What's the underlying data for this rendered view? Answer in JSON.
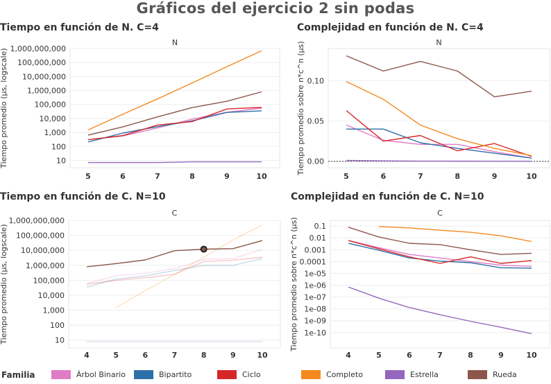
{
  "page": {
    "title": "Gráficos del ejercicio 2 sin podas"
  },
  "legend": {
    "title": "Familia",
    "items": [
      {
        "label": "Árbol Binario",
        "color": "#e07bc6"
      },
      {
        "label": "Bipartito",
        "color": "#2d6fa8"
      },
      {
        "label": "Ciclo",
        "color": "#d62728"
      },
      {
        "label": "Completo",
        "color": "#f5891f"
      },
      {
        "label": "Estrella",
        "color": "#9467bd"
      },
      {
        "label": "Rueda",
        "color": "#8c564b"
      }
    ]
  },
  "chart_data": [
    {
      "id": "time-n",
      "type": "line",
      "title": "Tiempo en función de N. C=4",
      "header": "N",
      "ylabel": "Tiempo promedio (μs, logscale)",
      "yscale": "log",
      "x": [
        5,
        6,
        7,
        8,
        9,
        10
      ],
      "xticks": [
        "5",
        "6",
        "7",
        "8",
        "9",
        "10"
      ],
      "ylim": [
        3,
        1000000000
      ],
      "yticks": [
        10,
        100,
        1000,
        10000,
        100000,
        1000000,
        10000000,
        100000000,
        1000000000
      ],
      "ytick_labels": [
        "10",
        "100",
        "1,000",
        "10,000",
        "100,000",
        "1,000,000",
        "10,000,000",
        "100,000,000",
        "1,000,000,000"
      ],
      "series": [
        {
          "name": "Árbol Binario",
          "values": [
            300,
            560,
            2100,
            9000,
            28000,
            55000
          ]
        },
        {
          "name": "Bipartito",
          "values": [
            210,
            900,
            2600,
            6800,
            27000,
            35000
          ]
        },
        {
          "name": "Ciclo",
          "values": [
            300,
            600,
            3400,
            6000,
            48000,
            62000
          ]
        },
        {
          "name": "Completo",
          "values": [
            1500,
            20000,
            250000,
            3500000,
            50000000,
            700000000
          ]
        },
        {
          "name": "Estrella",
          "values": [
            7,
            7,
            7,
            8,
            8,
            8
          ]
        },
        {
          "name": "Rueda",
          "values": [
            650,
            2500,
            13000,
            60000,
            170000,
            800000
          ]
        }
      ]
    },
    {
      "id": "complex-n",
      "type": "line",
      "title": "Complejidad en función de N. C=4",
      "header": "N",
      "ylabel": "Tiempo promedio sobre n*c^n (μs)",
      "yscale": "linear",
      "x": [
        5,
        6,
        7,
        8,
        9,
        10
      ],
      "xticks": [
        "5",
        "6",
        "7",
        "8",
        "9",
        "10"
      ],
      "ylim": [
        -0.008,
        0.14
      ],
      "yticks": [
        0.0,
        0.05,
        0.1
      ],
      "ytick_labels": [
        "0.00",
        "0.05",
        "0.10"
      ],
      "reference_line": 0,
      "series": [
        {
          "name": "Árbol Binario",
          "values": [
            0.045,
            0.026,
            0.021,
            0.021,
            0.012,
            0.004
          ]
        },
        {
          "name": "Bipartito",
          "values": [
            0.04,
            0.04,
            0.023,
            0.016,
            0.01,
            0.004
          ]
        },
        {
          "name": "Ciclo",
          "values": [
            0.063,
            0.025,
            0.032,
            0.013,
            0.022,
            0.006
          ]
        },
        {
          "name": "Completo",
          "values": [
            0.099,
            0.077,
            0.045,
            0.028,
            0.016,
            0.007
          ]
        },
        {
          "name": "Estrella",
          "values": [
            0.001,
            0.0005,
            0.0003,
            0.0002,
            0.0001,
            0.0001
          ]
        },
        {
          "name": "Rueda",
          "values": [
            0.131,
            0.112,
            0.124,
            0.112,
            0.08,
            0.087
          ]
        }
      ]
    },
    {
      "id": "time-c",
      "type": "line",
      "title": "Tiempo en función de C. N=10",
      "header": "C",
      "ylabel": "Tiempo promedio (μs, logscale)",
      "yscale": "log",
      "x": [
        4,
        5,
        6,
        7,
        8,
        9,
        10
      ],
      "xticks": [
        "4",
        "5",
        "6",
        "7",
        "8",
        "9",
        "10"
      ],
      "ylim": [
        3,
        1000000000
      ],
      "yticks": [
        10,
        100,
        1000,
        10000,
        100000,
        1000000,
        10000000,
        100000000,
        1000000000
      ],
      "ytick_labels": [
        "10",
        "100",
        "1,000",
        "10,000",
        "100,000",
        "1,000,000",
        "10,000,000",
        "100,000,000",
        "1,000,000,000"
      ],
      "highlight": {
        "series": "Rueda",
        "x": 8,
        "y": 12000000
      },
      "series": [
        {
          "name": "Árbol Binario",
          "values": [
            60000,
            200000,
            300000,
            600000,
            2500000,
            2800000,
            12000000
          ]
        },
        {
          "name": "Bipartito",
          "values": [
            35000,
            120000,
            200000,
            450000,
            1000000,
            1000000,
            2800000
          ]
        },
        {
          "name": "Ciclo",
          "values": [
            55000,
            100000,
            150000,
            250000,
            1800000,
            2200000,
            3500000
          ]
        },
        {
          "name": "Completo",
          "values": [
            null,
            1500,
            20000,
            250000,
            3500000,
            50000000,
            500000000
          ]
        },
        {
          "name": "Estrella",
          "values": [
            8,
            8,
            8,
            8,
            8,
            8,
            8
          ]
        },
        {
          "name": "Rueda",
          "values": [
            800000,
            1300000,
            2300000,
            9500000,
            12000000,
            13000000,
            45000000
          ]
        }
      ]
    },
    {
      "id": "complex-c",
      "type": "line",
      "title": "Complejidad en función de C. N=10",
      "header": "C",
      "ylabel": "Tiempo promedio sobre n*c^n (μs)",
      "yscale": "log",
      "x": [
        4,
        5,
        6,
        7,
        8,
        9,
        10
      ],
      "xticks": [
        "4",
        "5",
        "6",
        "7",
        "8",
        "9",
        "10"
      ],
      "ylim": [
        5e-12,
        0.3
      ],
      "yticks": [
        0.1,
        0.01,
        0.001,
        0.0001,
        1e-05,
        1e-06,
        1e-07,
        1e-08,
        1e-09,
        1e-10
      ],
      "ytick_labels": [
        "0.1",
        "0.01",
        "0.001",
        "0.0001",
        "1e-05",
        "1e-06",
        "1e-07",
        "1e-08",
        "1e-09",
        "1e-10"
      ],
      "series": [
        {
          "name": "Árbol Binario",
          "values": [
            0.006,
            0.0015,
            0.0004,
            0.0002,
            0.0001,
            5e-05,
            4e-05
          ]
        },
        {
          "name": "Bipartito",
          "values": [
            0.0035,
            0.0009,
            0.0002,
            0.00011,
            8e-05,
            3e-05,
            2.8e-05
          ]
        },
        {
          "name": "Ciclo",
          "values": [
            0.006,
            0.0012,
            0.00025,
            7e-05,
            0.00025,
            7e-05,
            0.00012
          ]
        },
        {
          "name": "Completo",
          "values": [
            null,
            0.09,
            0.07,
            0.045,
            0.03,
            0.015,
            0.005
          ]
        },
        {
          "name": "Estrella",
          "values": [
            7e-07,
            8e-08,
            1.3e-08,
            3.2e-09,
            9e-10,
            2.8e-10,
            8e-11
          ]
        },
        {
          "name": "Rueda",
          "values": [
            0.08,
            0.012,
            0.0035,
            0.0027,
            0.001,
            0.0004,
            0.0005
          ]
        }
      ]
    }
  ]
}
